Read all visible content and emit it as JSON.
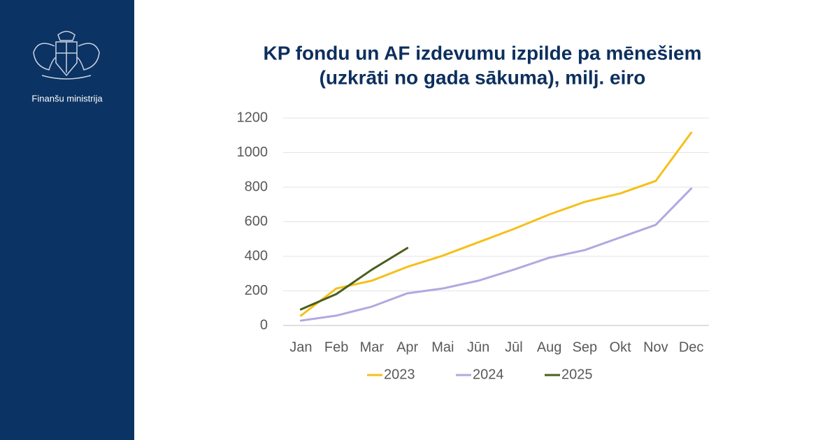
{
  "brand": {
    "org": "Finanšu ministrija"
  },
  "chart_data": {
    "type": "line",
    "title": "KP fondu un AF izdevumu izpilde pa mēnešiem",
    "subtitle": "(uzkrāti no gada sākuma), milj. eiro",
    "categories": [
      "Jan",
      "Feb",
      "Mar",
      "Apr",
      "Mai",
      "Jūn",
      "Jūl",
      "Aug",
      "Sep",
      "Okt",
      "Nov",
      "Dec"
    ],
    "series": [
      {
        "name": "2023",
        "color": "#f5c01a",
        "values": [
          57,
          214,
          259,
          339,
          404,
          481,
          558,
          642,
          715,
          764,
          836,
          1115
        ]
      },
      {
        "name": "2024",
        "color": "#b4a7e0",
        "values": [
          28,
          57,
          109,
          186,
          214,
          259,
          323,
          392,
          436,
          509,
          582,
          792
        ]
      },
      {
        "name": "2025",
        "color": "#4a5e1e",
        "values": [
          93,
          182,
          323,
          448,
          null,
          null,
          null,
          null,
          null,
          null,
          null,
          null
        ]
      }
    ],
    "ylim": [
      0,
      1200
    ],
    "yticks": [
      0,
      200,
      400,
      600,
      800,
      1000,
      1200
    ],
    "grid": true,
    "legend": "bottom"
  }
}
